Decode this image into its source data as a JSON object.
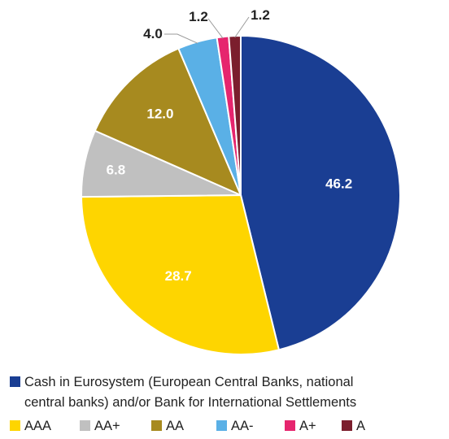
{
  "chart_data": {
    "type": "pie",
    "start": "12 o'clock",
    "direction": "clockwise",
    "slices": [
      {
        "label": "Cash in Eurosystem (European Central Banks, national central banks) and/or Bank for International Settlements",
        "value": 46.2,
        "display": "46.2",
        "color": "#1a3e93",
        "label_color": "#ffffff",
        "label_position": "inside"
      },
      {
        "label": "AAA",
        "value": 28.7,
        "display": "28.7",
        "color": "#fed500",
        "label_color": "#ffffff",
        "label_position": "inside"
      },
      {
        "label": "AA+",
        "value": 6.8,
        "display": "6.8",
        "color": "#c0c0c0",
        "label_color": "#ffffff",
        "label_position": "inside"
      },
      {
        "label": "AA",
        "value": 12.0,
        "display": "12.0",
        "color": "#a78a1f",
        "label_color": "#ffffff",
        "label_position": "inside"
      },
      {
        "label": "AA-",
        "value": 4.0,
        "display": "4.0",
        "color": "#5ab0e6",
        "label_color": "#222222",
        "label_position": "outside"
      },
      {
        "label": "A+",
        "value": 1.2,
        "display": "1.2",
        "color": "#e6256e",
        "label_color": "#222222",
        "label_position": "outside"
      },
      {
        "label": "A",
        "value": 1.2,
        "display": "1.2",
        "color": "#7b1e2d",
        "label_color": "#222222",
        "label_position": "outside"
      }
    ],
    "legend": {
      "placement": "bottom",
      "first_entry_lines": [
        "Cash in Eurosystem (European Central Banks, national",
        "central banks) and/or Bank for International Settlements"
      ],
      "row_entries": [
        "AAA",
        "AA+",
        "AA",
        "AA-",
        "A+",
        "A"
      ]
    }
  }
}
